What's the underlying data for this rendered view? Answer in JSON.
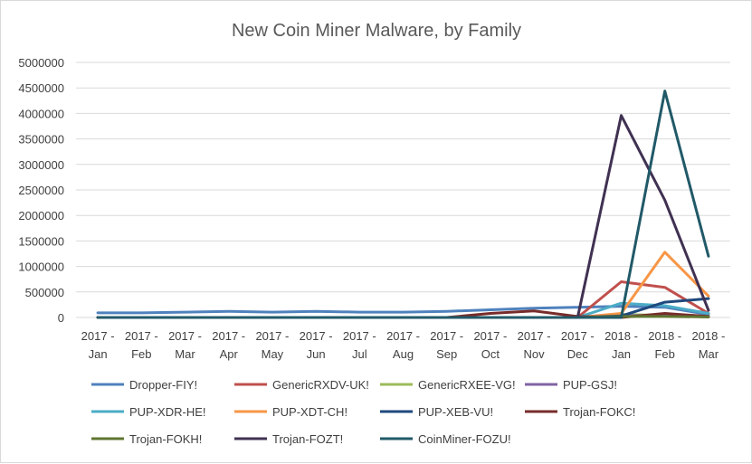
{
  "chart_data": {
    "type": "line",
    "title": "New Coin Miner Malware, by Family",
    "xlabel": "",
    "ylabel": "",
    "ylim": [
      0,
      5000000
    ],
    "y_ticks": [
      0,
      500000,
      1000000,
      1500000,
      2000000,
      2500000,
      3000000,
      3500000,
      4000000,
      4500000,
      5000000
    ],
    "grid": "horizontal",
    "legend_position": "bottom",
    "categories": [
      {
        "year": "2017 -",
        "month": "Jan"
      },
      {
        "year": "2017 -",
        "month": "Feb"
      },
      {
        "year": "2017 -",
        "month": "Mar"
      },
      {
        "year": "2017 -",
        "month": "Apr"
      },
      {
        "year": "2017 -",
        "month": "May"
      },
      {
        "year": "2017 -",
        "month": "Jun"
      },
      {
        "year": "2017 -",
        "month": "Jul"
      },
      {
        "year": "2017 -",
        "month": "Aug"
      },
      {
        "year": "2017 -",
        "month": "Sep"
      },
      {
        "year": "2017 -",
        "month": "Oct"
      },
      {
        "year": "2017 -",
        "month": "Nov"
      },
      {
        "year": "2017 -",
        "month": "Dec"
      },
      {
        "year": "2018 -",
        "month": "Jan"
      },
      {
        "year": "2018 -",
        "month": "Feb"
      },
      {
        "year": "2018 -",
        "month": "Mar"
      }
    ],
    "series": [
      {
        "name": "Dropper-FIY!",
        "color": "#4f81bd",
        "values": [
          90000,
          90000,
          105000,
          120000,
          105000,
          120000,
          105000,
          105000,
          120000,
          150000,
          180000,
          200000,
          220000,
          200000,
          60000
        ]
      },
      {
        "name": "GenericRXDV-UK!",
        "color": "#c0504d",
        "values": [
          0,
          0,
          0,
          0,
          0,
          0,
          0,
          0,
          0,
          0,
          0,
          0,
          700000,
          590000,
          80000
        ]
      },
      {
        "name": "GenericRXEE-VG!",
        "color": "#9bbb59",
        "values": [
          0,
          0,
          0,
          0,
          0,
          0,
          0,
          0,
          0,
          0,
          0,
          0,
          60000,
          40000,
          10000
        ]
      },
      {
        "name": "PUP-GSJ!",
        "color": "#8064a2",
        "values": [
          0,
          0,
          0,
          0,
          0,
          0,
          0,
          0,
          0,
          0,
          0,
          0,
          40000,
          30000,
          10000
        ]
      },
      {
        "name": "PUP-XDR-HE!",
        "color": "#4bacc6",
        "values": [
          0,
          0,
          0,
          0,
          0,
          0,
          0,
          0,
          0,
          0,
          0,
          0,
          280000,
          230000,
          80000
        ]
      },
      {
        "name": "PUP-XDT-CH!",
        "color": "#f79646",
        "values": [
          0,
          0,
          0,
          0,
          0,
          0,
          0,
          0,
          0,
          0,
          0,
          0,
          80000,
          1280000,
          420000
        ]
      },
      {
        "name": "PUP-XEB-VU!",
        "color": "#1f497d",
        "values": [
          0,
          0,
          0,
          0,
          0,
          0,
          0,
          0,
          0,
          0,
          0,
          0,
          30000,
          300000,
          370000
        ]
      },
      {
        "name": "Trojan-FOKC!",
        "color": "#772c2a",
        "values": [
          0,
          0,
          0,
          0,
          0,
          0,
          0,
          0,
          0,
          80000,
          130000,
          20000,
          0,
          80000,
          20000
        ]
      },
      {
        "name": "Trojan-FOKH!",
        "color": "#5f7530",
        "values": [
          0,
          0,
          0,
          0,
          0,
          0,
          0,
          0,
          0,
          0,
          0,
          0,
          20000,
          20000,
          10000
        ]
      },
      {
        "name": "Trojan-FOZT!",
        "color": "#403152",
        "values": [
          0,
          0,
          0,
          0,
          0,
          0,
          0,
          0,
          0,
          0,
          0,
          0,
          3960000,
          2300000,
          140000
        ]
      },
      {
        "name": "CoinMiner-FOZU!",
        "color": "#215968",
        "values": [
          0,
          0,
          0,
          0,
          0,
          0,
          0,
          0,
          0,
          0,
          0,
          0,
          0,
          4440000,
          1200000
        ]
      }
    ]
  }
}
